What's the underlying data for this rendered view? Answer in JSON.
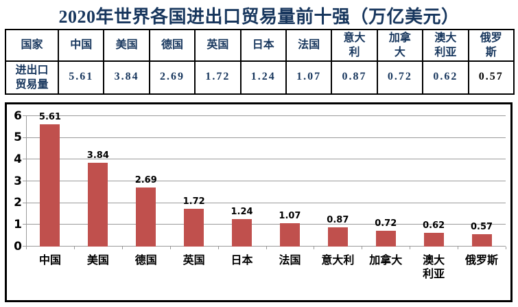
{
  "title": "2020年世界各国进出口贸易量前十强（万亿美元）",
  "table": {
    "header_label": "国家",
    "row_label": "进出口贸易量",
    "countries": [
      "中国",
      "美国",
      "德国",
      "英国",
      "日本",
      "法国",
      "意大利",
      "加拿大",
      "澳大利亚",
      "俄罗斯"
    ],
    "values": [
      "5.61",
      "3.84",
      "2.69",
      "1.72",
      "1.24",
      "1.07",
      "0.87",
      "0.72",
      "0.62",
      "0.57"
    ]
  },
  "chart_data": {
    "type": "bar",
    "title": "",
    "xlabel": "",
    "ylabel": "",
    "categories": [
      "中国",
      "美国",
      "德国",
      "英国",
      "日本",
      "法国",
      "意大利",
      "加拿大",
      "澳大利亚",
      "俄罗斯"
    ],
    "values": [
      5.61,
      3.84,
      2.69,
      1.72,
      1.24,
      1.07,
      0.87,
      0.72,
      0.62,
      0.57
    ],
    "data_labels": [
      "5.61",
      "3.84",
      "2.69",
      "1.72",
      "1.24",
      "1.07",
      "0.87",
      "0.72",
      "0.62",
      "0.57"
    ],
    "ylim": [
      0,
      6
    ],
    "yticks": [
      0,
      1,
      2,
      3,
      4,
      5,
      6
    ],
    "grid": true,
    "legend": "none"
  },
  "colors": {
    "title_text": "#17365D",
    "table_text": "#17365D",
    "last_value_text": "#000000",
    "bar_fill": "#C0504D",
    "gridline": "#999999",
    "border": "#000000",
    "axis_label_text": "#000000"
  }
}
